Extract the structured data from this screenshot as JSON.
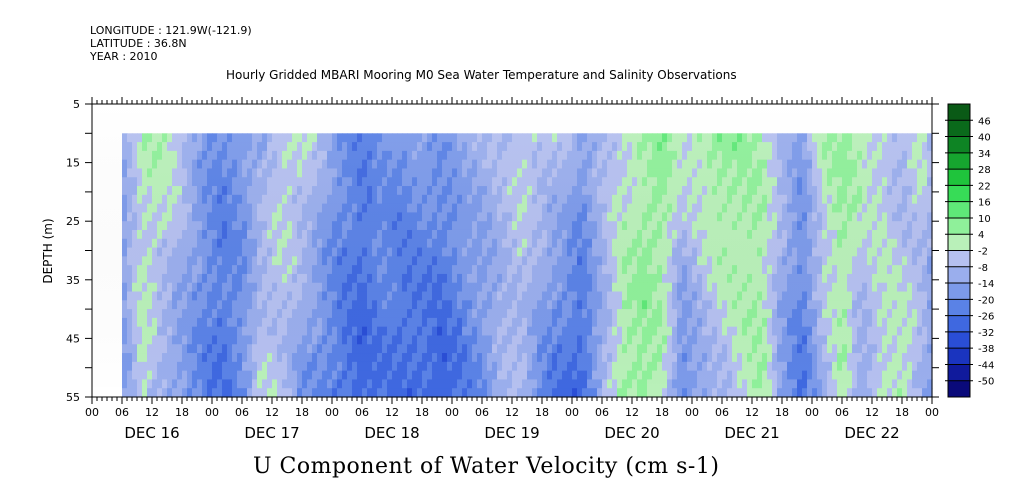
{
  "header": {
    "longitude": "LONGITUDE : 121.9W(-121.9)",
    "latitude": "LATITUDE : 36.8N",
    "year": "YEAR : 2010"
  },
  "chart_data": {
    "type": "heatmap",
    "title": "Hourly Gridded MBARI Mooring M0 Sea Water Temperature and Salinity Observations",
    "variable_title": "U Component of Water Velocity (cm s-1)",
    "ylabel": "DEPTH (m)",
    "y_axis": {
      "range": [
        5,
        55
      ],
      "inverted": true,
      "ticks": [
        5,
        15,
        25,
        35,
        45,
        55
      ]
    },
    "x_axis": {
      "hour_ticks": [
        "00",
        "06",
        "12",
        "18",
        "00",
        "06",
        "12",
        "18",
        "00",
        "06",
        "12",
        "18",
        "00",
        "06",
        "12",
        "18",
        "00",
        "06",
        "12",
        "18",
        "00",
        "06",
        "12",
        "18",
        "00",
        "06",
        "12",
        "18",
        "00"
      ],
      "day_labels": [
        "DEC 16",
        "DEC 17",
        "DEC 18",
        "DEC 19",
        "DEC 20",
        "DEC 21",
        "DEC 22"
      ]
    },
    "data_depth_range": [
      10,
      55
    ],
    "data_start_hour": 6,
    "colorbar": {
      "levels": [
        -50,
        -44,
        -38,
        -32,
        -26,
        -20,
        -14,
        -8,
        -2,
        4,
        10,
        16,
        22,
        28,
        34,
        40,
        46
      ],
      "colors": [
        "#0a0a7a",
        "#101a9c",
        "#1a34bf",
        "#2a4ed6",
        "#3f68e0",
        "#5a82e6",
        "#7c9aea",
        "#9aaeed",
        "#b5c0f0",
        "#b9f0b9",
        "#8ff09a",
        "#5fe878",
        "#37dc57",
        "#1fc43c",
        "#16a52f",
        "#0e8424",
        "#0a6a1b"
      ],
      "top_color": "#0a5a16"
    },
    "u_profile": {
      "hours": [
        6,
        10,
        14,
        18,
        22,
        26,
        30,
        34,
        38,
        42,
        46,
        50,
        54,
        58,
        62,
        66,
        70,
        74,
        78,
        82,
        86,
        90,
        94,
        98,
        102,
        106,
        110,
        114,
        118,
        122,
        126,
        130,
        134,
        138,
        142,
        146,
        150,
        154,
        158,
        162,
        166,
        170
      ],
      "shallow": [
        -8,
        6,
        8,
        2,
        -10,
        -16,
        -12,
        -6,
        4,
        6,
        -4,
        -14,
        -18,
        -12,
        -14,
        -10,
        -12,
        -6,
        -4,
        -2,
        4,
        2,
        0,
        -10,
        -2,
        4,
        8,
        14,
        6,
        10,
        14,
        12,
        8,
        -2,
        -10,
        8,
        12,
        10,
        4,
        -4,
        6,
        -10
      ],
      "deep": [
        -12,
        6,
        -6,
        -12,
        -16,
        -20,
        -14,
        4,
        0,
        -12,
        -16,
        -20,
        -24,
        -20,
        -22,
        -24,
        -26,
        -20,
        -14,
        -4,
        -2,
        -16,
        -22,
        -24,
        -6,
        10,
        14,
        6,
        -18,
        -8,
        -2,
        4,
        10,
        -10,
        -20,
        -6,
        8,
        -10,
        6,
        10,
        -6,
        -14
      ]
    }
  }
}
